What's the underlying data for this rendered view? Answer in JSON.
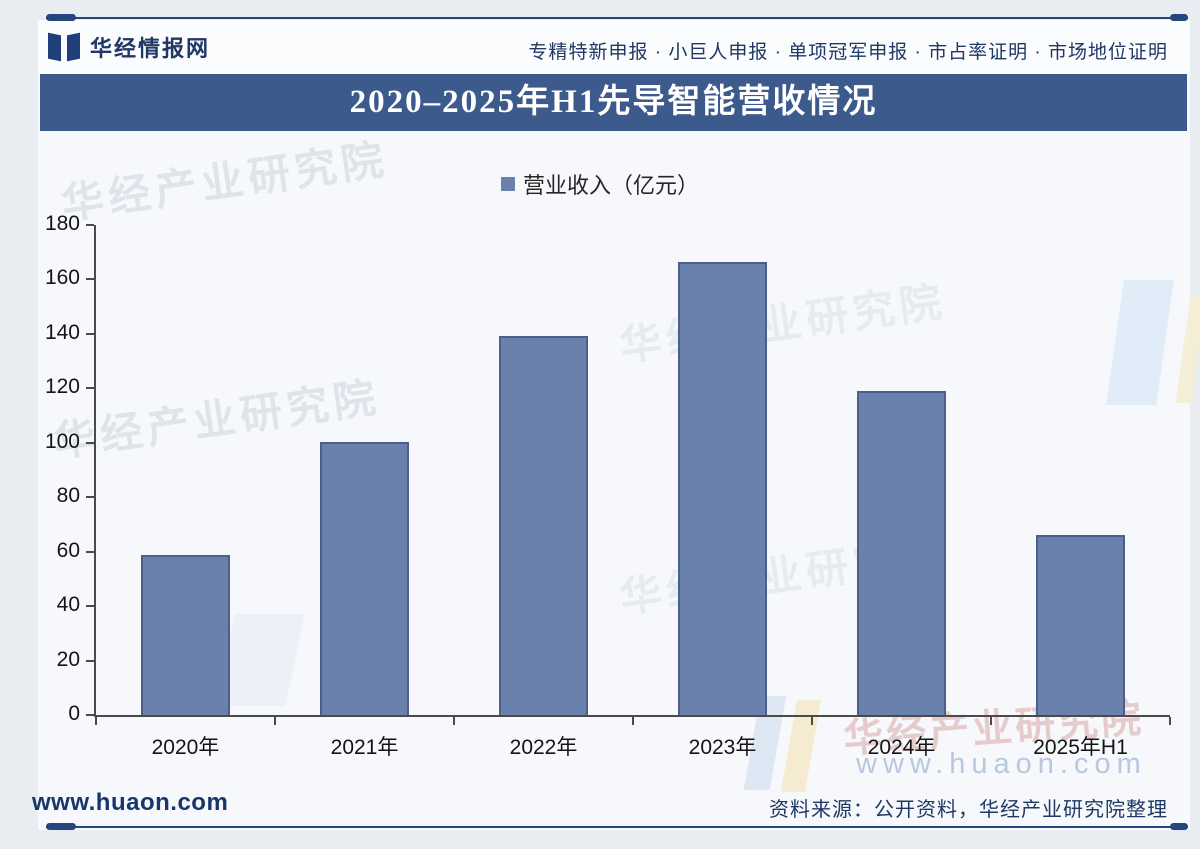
{
  "header": {
    "brand": "华经情报网",
    "tagline": "专精特新申报 · 小巨人申报 · 单项冠军申报 · 市占率证明 · 市场地位证明"
  },
  "title_bar": {
    "title": "2020–2025年H1先导智能营收情况"
  },
  "chart_data": {
    "type": "bar",
    "title": "2020–2025年H1先导智能营收情况",
    "legend": "营业收入（亿元）",
    "legend_position": "top-center",
    "series_name": "营业收入",
    "unit": "亿元",
    "categories": [
      "2020年",
      "2021年",
      "2022年",
      "2023年",
      "2024年",
      "2025年H1"
    ],
    "values": [
      58.6,
      100.4,
      139.3,
      166.3,
      118.9,
      66.1
    ],
    "ylim": [
      0,
      180
    ],
    "yticks": [
      0,
      20,
      40,
      60,
      80,
      100,
      120,
      140,
      160,
      180
    ],
    "grid": false,
    "bar_color": "#6a81ae"
  },
  "watermarks": {
    "org": "华经产业研究院",
    "url": "www.huaon.com"
  },
  "footer": {
    "site": "www.huaon.com",
    "source": "资料来源：公开资料，华经产业研究院整理"
  },
  "colors": {
    "title_bar_bg": "#3d5a8c",
    "bar": "#6a81ae",
    "bar_border": "#4d5e8c",
    "navy_text": "#1f3864",
    "axis": "#4a4a4a",
    "rule": "#24457e"
  }
}
